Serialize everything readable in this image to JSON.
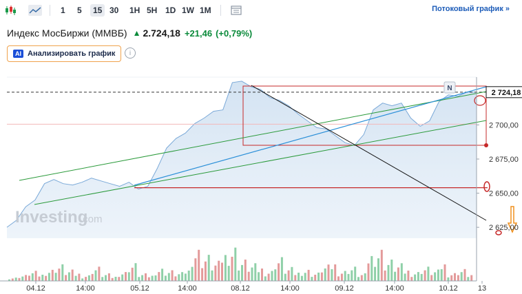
{
  "toolbar": {
    "timeframes": [
      "1",
      "5",
      "15",
      "30",
      "1H",
      "5H",
      "1D",
      "1W",
      "1M"
    ],
    "active_timeframe": "15",
    "stream_link": "Потоковый график »"
  },
  "header": {
    "instrument": "Индекс МосБиржи (MMBБ)",
    "price": "2.724,18",
    "change": "+21,46",
    "change_pct": "(+0,79%)",
    "up_color": "#0a8a3a"
  },
  "analyze": {
    "badge": "AI",
    "label": "Анализировать график"
  },
  "watermark": {
    "brand": "Investing",
    "suffix": ".com"
  },
  "marker": "N",
  "chart_data": {
    "type": "area",
    "y_ticks": [
      "2 700,00",
      "2 675,00",
      "2 650,00",
      "2 625,00"
    ],
    "y_tick_values": [
      2700,
      2675,
      2650,
      2625
    ],
    "x_ticks": [
      "04.12",
      "14:00",
      "05.12",
      "14:00",
      "08.12",
      "14:00",
      "09.12",
      "14:00",
      "10.12",
      "13"
    ],
    "last_price_label": "2 724,18",
    "ylim": [
      2617,
      2735
    ],
    "area_color": "#7aa9d8",
    "x": [
      0,
      2,
      4,
      6,
      8,
      10,
      12,
      14,
      16,
      18,
      20,
      22,
      24,
      26,
      28,
      30,
      32,
      34,
      36,
      38,
      40,
      42,
      44,
      46,
      48,
      50,
      52,
      54,
      56,
      58,
      60,
      62,
      64,
      66,
      68,
      70,
      72,
      74,
      76,
      78,
      80,
      82,
      84,
      86,
      88,
      90,
      92,
      94,
      96,
      98,
      100
    ],
    "values": [
      2625,
      2630,
      2640,
      2645,
      2657,
      2660,
      2657,
      2656,
      2658,
      2661,
      2659,
      2657,
      2655,
      2658,
      2653,
      2655,
      2668,
      2683,
      2690,
      2694,
      2701,
      2705,
      2710,
      2711,
      2731,
      2732,
      2728,
      2726,
      2720,
      2718,
      2714,
      2708,
      2703,
      2698,
      2697,
      2692,
      2687,
      2685,
      2693,
      2711,
      2716,
      2714,
      2716,
      2705,
      2699,
      2703,
      2717,
      2722,
      2721,
      2724,
      2724
    ],
    "volume": [
      3,
      5,
      8,
      6,
      10,
      14,
      9,
      7,
      5,
      12,
      6,
      4,
      8,
      15,
      6,
      5,
      11,
      9,
      7,
      10,
      28,
      22,
      16,
      25,
      30,
      18,
      14,
      12,
      9,
      20,
      11,
      8,
      10,
      7,
      13,
      16,
      9,
      12,
      6,
      24,
      28,
      18,
      14,
      10,
      8,
      12,
      9,
      16,
      7,
      10,
      6
    ],
    "volume_up": [
      true,
      false,
      true,
      true,
      false,
      true,
      false,
      true,
      false,
      true,
      false,
      true,
      false,
      true,
      true,
      false,
      true,
      false,
      true,
      true,
      false,
      true,
      true,
      false,
      true,
      false,
      false,
      true,
      false,
      false,
      true,
      false,
      true,
      false,
      false,
      true,
      false,
      true,
      true,
      true,
      false,
      true,
      false,
      true,
      true,
      false,
      true,
      false,
      true,
      true,
      false
    ]
  }
}
